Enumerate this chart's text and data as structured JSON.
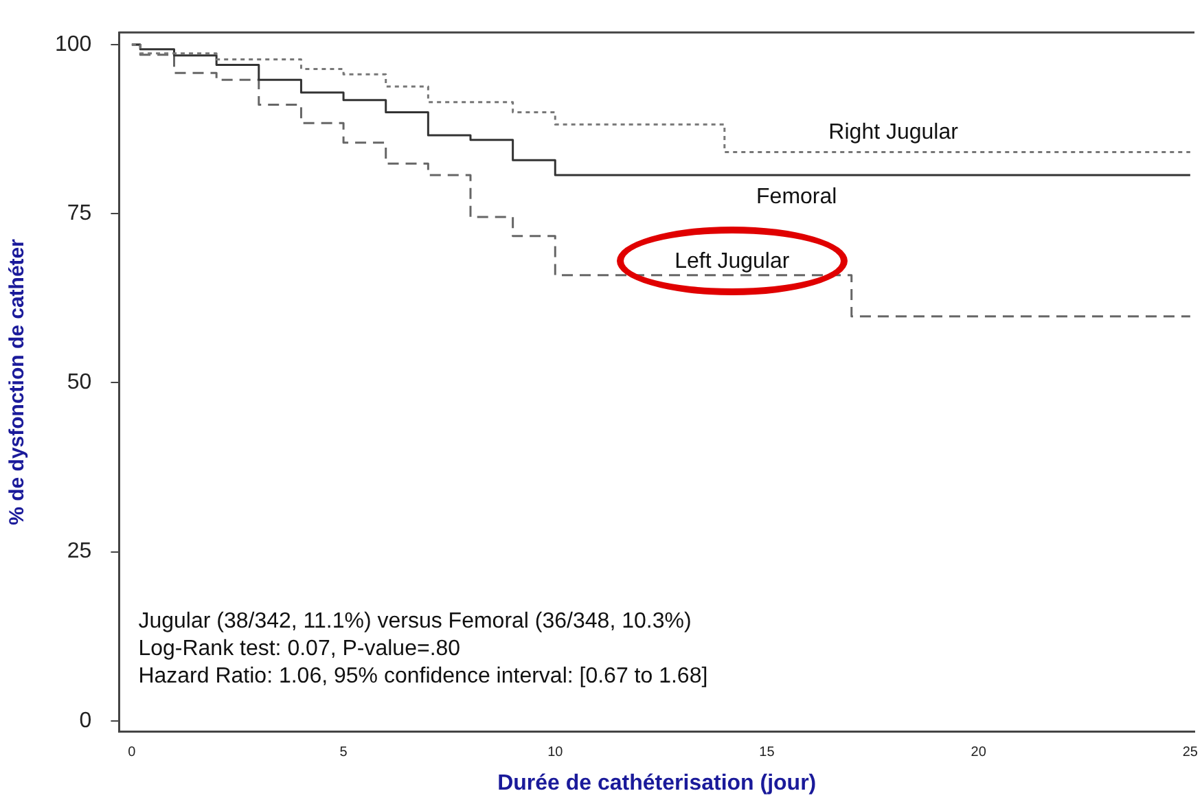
{
  "chart_data": {
    "type": "step",
    "xlabel": "Durée de cathéterisation (jour)",
    "ylabel": "% de dysfonction de cathéter",
    "xlim": [
      -0.3,
      25.1
    ],
    "xticks": [
      0,
      5,
      10,
      15,
      20,
      25
    ],
    "ylim": [
      -1.6,
      101.8
    ],
    "yticks": [
      0,
      25,
      50,
      75,
      100
    ],
    "grid": false,
    "legend": false,
    "marker": "none",
    "series": [
      {
        "name": "Right Jugular",
        "color": "#777777",
        "line_style": "dotted",
        "x": [
          0,
          0.2,
          2,
          4,
          5,
          6,
          7,
          9,
          10,
          14,
          25
        ],
        "values": [
          100,
          98.7,
          97.8,
          96.4,
          95.6,
          93.8,
          91.5,
          90,
          88.2,
          84.1,
          84.1
        ]
      },
      {
        "name": "Femoral",
        "color": "#333333",
        "line_style": "solid",
        "x": [
          0,
          0.2,
          1,
          2,
          3,
          4,
          5,
          6,
          7,
          8,
          9,
          10,
          25
        ],
        "values": [
          100,
          99.3,
          98.4,
          97,
          94.8,
          92.9,
          91.8,
          90,
          86.6,
          85.9,
          82.9,
          80.7,
          80.7
        ]
      },
      {
        "name": "Left Jugular",
        "color": "#666666",
        "line_style": "dashed",
        "x": [
          0,
          0.2,
          1,
          2,
          3,
          4,
          5,
          6,
          7,
          8,
          9,
          10,
          17,
          25
        ],
        "values": [
          100,
          98.5,
          95.8,
          94.8,
          91.1,
          88.4,
          85.5,
          82.4,
          80.7,
          74.5,
          71.7,
          65.9,
          59.8,
          59.8
        ]
      }
    ],
    "annotations": [
      "Jugular (38/342, 11.1%) versus Femoral (36/348, 10.3%)",
      "Log-Rank test: 0.07, P-value=.80",
      "Hazard Ratio: 1.06, 95% confidence interval: [0.67 to 1.68]"
    ]
  }
}
